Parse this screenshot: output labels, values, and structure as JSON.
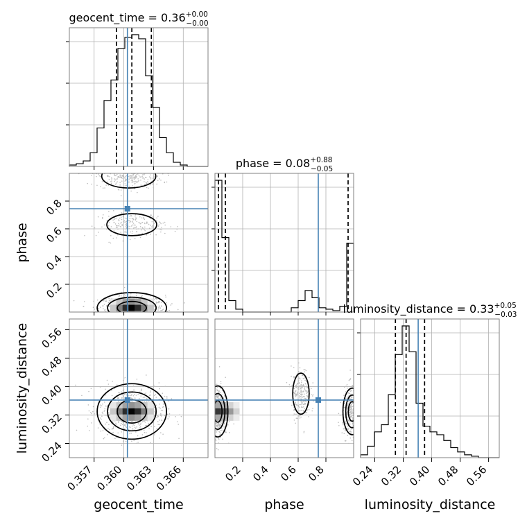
{
  "chart_data": {
    "type": "corner",
    "parameters": [
      {
        "name": "geocent_time",
        "label": "geocent_time",
        "range": [
          0.3545,
          0.3685
        ],
        "ticks": [
          0.357,
          0.36,
          0.363,
          0.366
        ],
        "tick_labels": [
          "0.357",
          "0.360",
          "0.363",
          "0.366"
        ],
        "truth": 0.36036,
        "quantiles": [
          0.35926,
          0.36081,
          0.36278
        ],
        "title_value": "0.36",
        "title_plus": "+0.00",
        "title_minus": "−0.00"
      },
      {
        "name": "phase",
        "label": "phase",
        "range": [
          0.0,
          1.0
        ],
        "ticks": [
          0.2,
          0.4,
          0.6,
          0.8
        ],
        "tick_labels": [
          "0.2",
          "0.4",
          "0.6",
          "0.8"
        ],
        "truth": 0.745,
        "quantiles": [
          0.025,
          0.075,
          0.96
        ],
        "title_value": "0.08",
        "title_plus": "+0.88",
        "title_minus": "−0.05"
      },
      {
        "name": "luminosity_distance",
        "label": "luminosity_distance",
        "range": [
          0.2,
          0.59
        ],
        "ticks": [
          0.24,
          0.32,
          0.4,
          0.48,
          0.56
        ],
        "tick_labels": [
          "0.24",
          "0.32",
          "0.40",
          "0.48",
          "0.56"
        ],
        "truth": 0.362,
        "quantiles": [
          0.298,
          0.328,
          0.38
        ],
        "title_value": "0.33",
        "title_plus": "+0.05",
        "title_minus": "−0.03"
      }
    ],
    "marginals": {
      "geocent_time": {
        "bin_edges": [
          0.3545,
          0.3552,
          0.3559,
          0.3566,
          0.3573,
          0.358,
          0.3587,
          0.3594,
          0.3601,
          0.3608,
          0.3615,
          0.3622,
          0.3629,
          0.3636,
          0.3643,
          0.365,
          0.3657,
          0.3664,
          0.3671,
          0.3678,
          0.3685
        ],
        "counts": [
          1,
          2,
          4,
          10,
          28,
          48,
          63,
          86,
          94,
          96,
          93,
          66,
          43,
          21,
          10,
          3,
          1,
          0,
          0,
          0
        ]
      },
      "phase": {
        "bin_edges": [
          0.0,
          0.05,
          0.1,
          0.15,
          0.2,
          0.25,
          0.3,
          0.35,
          0.4,
          0.45,
          0.5,
          0.55,
          0.6,
          0.65,
          0.7,
          0.75,
          0.8,
          0.85,
          0.9,
          0.95,
          1.0
        ],
        "counts": [
          92,
          52,
          8,
          2,
          0,
          0,
          0,
          0,
          0,
          0,
          0,
          3,
          8,
          15,
          10,
          3,
          2,
          1,
          4,
          48
        ]
      },
      "luminosity_distance": {
        "bin_edges": [
          0.2,
          0.2195,
          0.239,
          0.2585,
          0.278,
          0.2975,
          0.317,
          0.3365,
          0.356,
          0.3755,
          0.395,
          0.4145,
          0.434,
          0.4535,
          0.473,
          0.4925,
          0.512,
          0.5315,
          0.551,
          0.5705,
          0.59
        ],
        "counts": [
          2,
          8,
          18,
          23,
          44,
          72,
          92,
          74,
          38,
          22,
          18,
          16,
          12,
          7,
          4,
          2,
          1,
          0,
          0,
          0
        ]
      }
    },
    "joint_modes": [
      {
        "x": "geocent_time",
        "y": "phase",
        "modes": [
          [
            0.36081,
            0.03,
            1.0
          ],
          [
            0.3605,
            0.98,
            0.45
          ],
          [
            0.3608,
            0.63,
            0.3
          ]
        ]
      },
      {
        "x": "geocent_time",
        "y": "luminosity_distance",
        "modes": [
          [
            0.36081,
            0.33,
            1.0
          ]
        ]
      },
      {
        "x": "phase",
        "y": "luminosity_distance",
        "modes": [
          [
            0.02,
            0.33,
            0.8
          ],
          [
            0.62,
            0.38,
            0.35
          ],
          [
            0.99,
            0.33,
            0.6
          ]
        ]
      }
    ],
    "grid": true
  }
}
